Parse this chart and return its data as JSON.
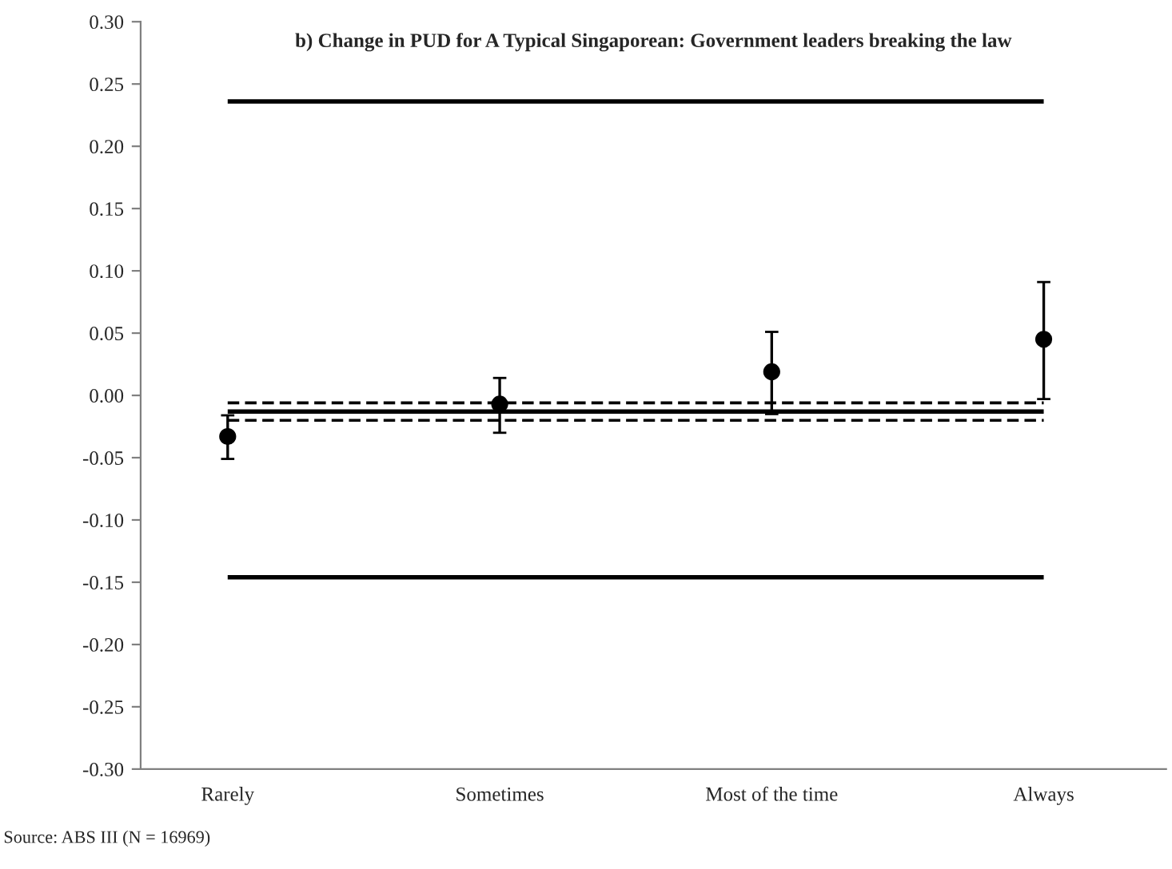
{
  "chart_data": {
    "type": "scatter",
    "title": "b) Change in PUD for A Typical Singaporean: Government leaders breaking the law",
    "categories": [
      "Rarely",
      "Sometimes",
      "Most of the time",
      "Always"
    ],
    "series": [
      {
        "color": "#000000",
        "values": [
          -0.033,
          -0.007,
          0.019,
          0.045
        ],
        "errors": [
          [
            -0.051,
            -0.016
          ],
          [
            -0.03,
            0.014
          ],
          [
            -0.015,
            0.051
          ],
          [
            -0.003,
            0.091
          ]
        ]
      }
    ],
    "marker": "circle",
    "ylim": [
      -0.3,
      0.3
    ],
    "yticks": [
      {
        "value": -0.3,
        "label": "-0.30"
      },
      {
        "value": -0.25,
        "label": "-0.25"
      },
      {
        "value": -0.2,
        "label": "-0.20"
      },
      {
        "value": -0.15,
        "label": "-0.15"
      },
      {
        "value": -0.1,
        "label": "-0.10"
      },
      {
        "value": -0.05,
        "label": "-0.05"
      },
      {
        "value": 0.0,
        "label": "0.00"
      },
      {
        "value": 0.05,
        "label": "0.05"
      },
      {
        "value": 0.1,
        "label": "0.10"
      },
      {
        "value": 0.15,
        "label": "0.15"
      },
      {
        "value": 0.2,
        "label": "0.20"
      },
      {
        "value": 0.25,
        "label": "0.25"
      },
      {
        "value": 0.3,
        "label": "0.30"
      }
    ],
    "ref_lines": [
      {
        "axis": "y",
        "value": 0.236,
        "color": "#000000",
        "line_style": "solid"
      },
      {
        "axis": "y",
        "value": -0.006,
        "color": "#000000",
        "line_style": "dashed"
      },
      {
        "axis": "y",
        "value": -0.013,
        "color": "#000000",
        "line_style": "solid"
      },
      {
        "axis": "y",
        "value": -0.02,
        "color": "#000000",
        "line_style": "dashed"
      },
      {
        "axis": "y",
        "value": -0.146,
        "color": "#000000",
        "line_style": "solid"
      }
    ],
    "grid": false,
    "annotations": [
      "Source: ABS III (N = 16969)"
    ]
  }
}
